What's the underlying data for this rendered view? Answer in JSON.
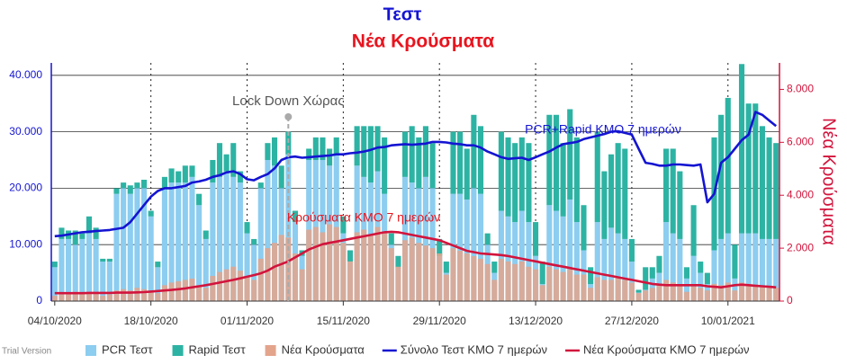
{
  "chart_data": {
    "type": "combo",
    "title": "Τεστ",
    "subtitle": "Νέα Κρούσματα",
    "y2label": "Νέα Κρούσματα",
    "footer": "Trial Version",
    "annotations": [
      "Lock Down Χώρας",
      "PCR+Rapid ΚΜΟ 7 ημερών",
      "Κρούσματα ΚΜΟ 7 ημερών"
    ],
    "categories": [
      "04/10/2020",
      null,
      null,
      null,
      null,
      null,
      null,
      null,
      null,
      null,
      null,
      null,
      null,
      null,
      "18/10/2020",
      null,
      null,
      null,
      null,
      null,
      null,
      null,
      null,
      null,
      null,
      null,
      null,
      null,
      "01/11/2020",
      null,
      null,
      null,
      null,
      null,
      null,
      null,
      null,
      null,
      null,
      null,
      null,
      null,
      "15/11/2020",
      null,
      null,
      null,
      null,
      null,
      null,
      null,
      null,
      null,
      null,
      null,
      null,
      null,
      "29/11/2020",
      null,
      null,
      null,
      null,
      null,
      null,
      null,
      null,
      null,
      null,
      null,
      null,
      null,
      "13/12/2020",
      null,
      null,
      null,
      null,
      null,
      null,
      null,
      null,
      null,
      null,
      null,
      null,
      null,
      "27/12/2020",
      null,
      null,
      null,
      null,
      null,
      null,
      null,
      null,
      null,
      null,
      null,
      null,
      null,
      "10/01/2021",
      null,
      null,
      null,
      null,
      null,
      null,
      null
    ],
    "ylim": [
      0,
      42200
    ],
    "yticks": [
      0,
      {
        "value": 10000,
        "label": "10.000"
      },
      {
        "value": 20000,
        "label": "20.000"
      },
      {
        "value": 30000,
        "label": "30.000"
      },
      {
        "value": 40000,
        "label": "40.000"
      }
    ],
    "y2lim": [
      0,
      9000
    ],
    "y2ticks": [
      0,
      {
        "value": 2000,
        "label": "2.000"
      },
      {
        "value": 4000,
        "label": "4.000"
      },
      {
        "value": 6000,
        "label": "6.000"
      },
      {
        "value": 8000,
        "label": "8.000"
      }
    ],
    "grid": true,
    "series": [
      {
        "name": "PCR Τεστ",
        "type": "bar",
        "color": "#8ccdf0",
        "values": [
          6000,
          11000,
          11000,
          10000,
          11000,
          12000,
          11000,
          7000,
          7000,
          19000,
          20000,
          19000,
          20000,
          20000,
          15000,
          6000,
          20000,
          21000,
          21000,
          21000,
          22000,
          17000,
          11000,
          21000,
          22000,
          23000,
          22000,
          21000,
          12000,
          10000,
          20000,
          25000,
          24000,
          20000,
          26000,
          14000,
          8000,
          25000,
          25000,
          25000,
          24000,
          26000,
          12000,
          7000,
          24000,
          22000,
          21000,
          23000,
          19000,
          10000,
          6000,
          22000,
          21000,
          20000,
          22000,
          20000,
          8000,
          5000,
          19000,
          19000,
          18000,
          20000,
          19000,
          10000,
          5000,
          16000,
          15000,
          14000,
          16000,
          14000,
          8000,
          3000,
          17000,
          16000,
          15000,
          18000,
          14000,
          9000,
          3000,
          14000,
          11000,
          13000,
          12000,
          11000,
          7000,
          1500,
          2000,
          4000,
          5000,
          14000,
          12000,
          11000,
          4000,
          8000,
          5000,
          3000,
          9000,
          11000,
          12000,
          4000,
          12000,
          12000,
          12000,
          11000,
          11000,
          11000
        ]
      },
      {
        "name": "Rapid Τεστ",
        "type": "bar",
        "color": "#2db3a3",
        "values": [
          1000,
          2000,
          1500,
          2500,
          1000,
          3000,
          2000,
          500,
          500,
          1000,
          1000,
          1500,
          1000,
          1500,
          1000,
          1000,
          2000,
          2500,
          2000,
          3000,
          2000,
          2000,
          1500,
          4000,
          6000,
          3000,
          6000,
          2000,
          2000,
          1000,
          1000,
          3000,
          5000,
          4000,
          4000,
          2000,
          1000,
          2000,
          4000,
          4000,
          3000,
          3000,
          3000,
          2000,
          7000,
          9000,
          10000,
          8000,
          10000,
          2000,
          2000,
          8000,
          10000,
          9000,
          9000,
          8000,
          3000,
          2000,
          11000,
          11000,
          9000,
          13000,
          12000,
          2000,
          2000,
          14000,
          14000,
          14000,
          13000,
          14000,
          6000,
          4000,
          16000,
          17000,
          13000,
          16000,
          15000,
          8000,
          3000,
          16000,
          12000,
          13000,
          16000,
          16000,
          4000,
          500,
          4000,
          2000,
          3000,
          13000,
          15000,
          12000,
          2000,
          9000,
          2000,
          2000,
          20000,
          22000,
          24000,
          6000,
          30000,
          23000,
          23000,
          20000,
          18000,
          17000
        ]
      },
      {
        "name": "Νέα Κρούσματα",
        "type": "bar",
        "axis": "y2",
        "color": "#e3a48c",
        "values": [
          200,
          250,
          300,
          350,
          320,
          300,
          280,
          200,
          250,
          400,
          450,
          400,
          500,
          450,
          350,
          300,
          600,
          700,
          750,
          800,
          850,
          600,
          500,
          950,
          1100,
          1200,
          1300,
          1150,
          900,
          800,
          1600,
          2000,
          2200,
          2500,
          2400,
          1800,
          1200,
          2700,
          2800,
          2600,
          2900,
          2800,
          2200,
          1500,
          2600,
          2700,
          2500,
          2800,
          2600,
          2000,
          1300,
          2300,
          2400,
          2200,
          2100,
          2000,
          1800,
          1000,
          2000,
          1900,
          1800,
          1700,
          1600,
          1400,
          800,
          1600,
          1500,
          1400,
          1500,
          1300,
          1200,
          600,
          1300,
          1200,
          1100,
          1200,
          1000,
          1000,
          500,
          900,
          800,
          800,
          900,
          800,
          700,
          300,
          400,
          500,
          600,
          800,
          700,
          600,
          350,
          550,
          500,
          400,
          650,
          600,
          700,
          400,
          700,
          650,
          600,
          550,
          500,
          500
        ]
      },
      {
        "name": "Σύνολο Τεστ ΚΜΟ 7 ημερών",
        "type": "line",
        "color": "#1414d2",
        "values": [
          11500,
          11600,
          11800,
          12000,
          12200,
          12300,
          12400,
          12500,
          12600,
          12800,
          13000,
          14000,
          15500,
          17000,
          18500,
          19500,
          20000,
          20000,
          20200,
          20400,
          21000,
          21200,
          21500,
          22000,
          22300,
          22800,
          23000,
          22500,
          21600,
          21400,
          22000,
          22500,
          23500,
          25000,
          25500,
          25600,
          25400,
          25500,
          25600,
          25700,
          25800,
          26000,
          26000,
          26200,
          26300,
          26500,
          26800,
          27200,
          27300,
          27600,
          27700,
          27800,
          27700,
          27800,
          27900,
          28200,
          28200,
          28100,
          27900,
          27800,
          27600,
          27600,
          27200,
          26500,
          26000,
          25500,
          25200,
          25300,
          25400,
          25000,
          25500,
          26000,
          26500,
          27200,
          27800,
          28000,
          28200,
          28700,
          29000,
          29300,
          29600,
          30000,
          30100,
          29800,
          29500,
          27000,
          24500,
          24300,
          24000,
          24000,
          24200,
          24200,
          24100,
          24000,
          24200,
          17500,
          19000,
          24500,
          25500,
          27000,
          28500,
          29500,
          33500,
          33000,
          32000,
          31000
        ]
      },
      {
        "name": "Νέα Κρούσματα ΚΜΟ 7 ημερών",
        "type": "line",
        "axis": "y2",
        "color": "#d2143c",
        "values": [
          300,
          300,
          300,
          300,
          300,
          310,
          310,
          310,
          310,
          320,
          320,
          320,
          330,
          340,
          360,
          380,
          400,
          420,
          450,
          480,
          520,
          560,
          600,
          650,
          700,
          750,
          800,
          860,
          920,
          980,
          1050,
          1150,
          1300,
          1400,
          1500,
          1650,
          1800,
          1950,
          2050,
          2150,
          2200,
          2250,
          2300,
          2350,
          2400,
          2450,
          2500,
          2550,
          2600,
          2620,
          2600,
          2550,
          2500,
          2450,
          2400,
          2350,
          2300,
          2200,
          2100,
          2000,
          1900,
          1850,
          1800,
          1780,
          1760,
          1740,
          1700,
          1650,
          1600,
          1550,
          1500,
          1450,
          1400,
          1350,
          1300,
          1250,
          1200,
          1150,
          1100,
          1050,
          1000,
          950,
          900,
          850,
          800,
          750,
          700,
          650,
          620,
          600,
          600,
          600,
          600,
          600,
          600,
          560,
          540,
          520,
          560,
          600,
          620,
          600,
          580,
          560,
          540,
          520
        ]
      }
    ]
  }
}
